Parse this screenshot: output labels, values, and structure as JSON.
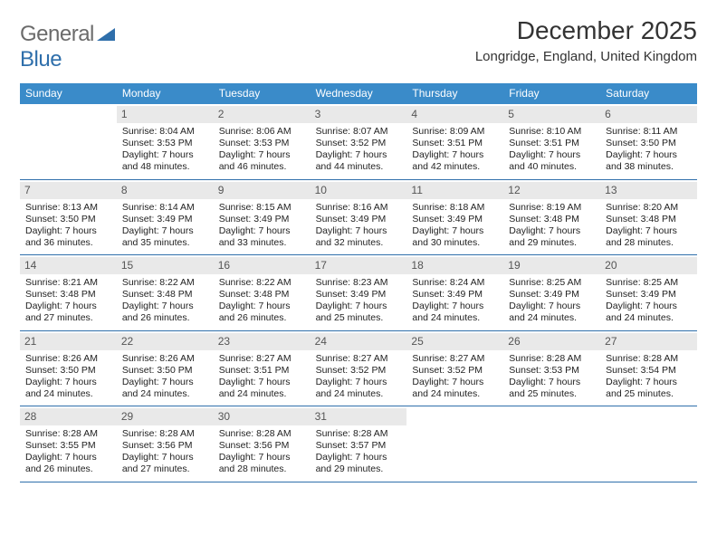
{
  "logo": {
    "grey": "General",
    "blue": "Blue"
  },
  "header": {
    "month_title": "December 2025",
    "location": "Longridge, England, United Kingdom"
  },
  "calendar": {
    "header_bg": "#3a8bc9",
    "header_fg": "#ffffff",
    "border_color": "#2f6fab",
    "daynum_bg": "#e9e9e9",
    "day_names": [
      "Sunday",
      "Monday",
      "Tuesday",
      "Wednesday",
      "Thursday",
      "Friday",
      "Saturday"
    ],
    "weeks": [
      [
        null,
        {
          "n": "1",
          "sr": "Sunrise: 8:04 AM",
          "ss": "Sunset: 3:53 PM",
          "d1": "Daylight: 7 hours",
          "d2": "and 48 minutes."
        },
        {
          "n": "2",
          "sr": "Sunrise: 8:06 AM",
          "ss": "Sunset: 3:53 PM",
          "d1": "Daylight: 7 hours",
          "d2": "and 46 minutes."
        },
        {
          "n": "3",
          "sr": "Sunrise: 8:07 AM",
          "ss": "Sunset: 3:52 PM",
          "d1": "Daylight: 7 hours",
          "d2": "and 44 minutes."
        },
        {
          "n": "4",
          "sr": "Sunrise: 8:09 AM",
          "ss": "Sunset: 3:51 PM",
          "d1": "Daylight: 7 hours",
          "d2": "and 42 minutes."
        },
        {
          "n": "5",
          "sr": "Sunrise: 8:10 AM",
          "ss": "Sunset: 3:51 PM",
          "d1": "Daylight: 7 hours",
          "d2": "and 40 minutes."
        },
        {
          "n": "6",
          "sr": "Sunrise: 8:11 AM",
          "ss": "Sunset: 3:50 PM",
          "d1": "Daylight: 7 hours",
          "d2": "and 38 minutes."
        }
      ],
      [
        {
          "n": "7",
          "sr": "Sunrise: 8:13 AM",
          "ss": "Sunset: 3:50 PM",
          "d1": "Daylight: 7 hours",
          "d2": "and 36 minutes."
        },
        {
          "n": "8",
          "sr": "Sunrise: 8:14 AM",
          "ss": "Sunset: 3:49 PM",
          "d1": "Daylight: 7 hours",
          "d2": "and 35 minutes."
        },
        {
          "n": "9",
          "sr": "Sunrise: 8:15 AM",
          "ss": "Sunset: 3:49 PM",
          "d1": "Daylight: 7 hours",
          "d2": "and 33 minutes."
        },
        {
          "n": "10",
          "sr": "Sunrise: 8:16 AM",
          "ss": "Sunset: 3:49 PM",
          "d1": "Daylight: 7 hours",
          "d2": "and 32 minutes."
        },
        {
          "n": "11",
          "sr": "Sunrise: 8:18 AM",
          "ss": "Sunset: 3:49 PM",
          "d1": "Daylight: 7 hours",
          "d2": "and 30 minutes."
        },
        {
          "n": "12",
          "sr": "Sunrise: 8:19 AM",
          "ss": "Sunset: 3:48 PM",
          "d1": "Daylight: 7 hours",
          "d2": "and 29 minutes."
        },
        {
          "n": "13",
          "sr": "Sunrise: 8:20 AM",
          "ss": "Sunset: 3:48 PM",
          "d1": "Daylight: 7 hours",
          "d2": "and 28 minutes."
        }
      ],
      [
        {
          "n": "14",
          "sr": "Sunrise: 8:21 AM",
          "ss": "Sunset: 3:48 PM",
          "d1": "Daylight: 7 hours",
          "d2": "and 27 minutes."
        },
        {
          "n": "15",
          "sr": "Sunrise: 8:22 AM",
          "ss": "Sunset: 3:48 PM",
          "d1": "Daylight: 7 hours",
          "d2": "and 26 minutes."
        },
        {
          "n": "16",
          "sr": "Sunrise: 8:22 AM",
          "ss": "Sunset: 3:48 PM",
          "d1": "Daylight: 7 hours",
          "d2": "and 26 minutes."
        },
        {
          "n": "17",
          "sr": "Sunrise: 8:23 AM",
          "ss": "Sunset: 3:49 PM",
          "d1": "Daylight: 7 hours",
          "d2": "and 25 minutes."
        },
        {
          "n": "18",
          "sr": "Sunrise: 8:24 AM",
          "ss": "Sunset: 3:49 PM",
          "d1": "Daylight: 7 hours",
          "d2": "and 24 minutes."
        },
        {
          "n": "19",
          "sr": "Sunrise: 8:25 AM",
          "ss": "Sunset: 3:49 PM",
          "d1": "Daylight: 7 hours",
          "d2": "and 24 minutes."
        },
        {
          "n": "20",
          "sr": "Sunrise: 8:25 AM",
          "ss": "Sunset: 3:49 PM",
          "d1": "Daylight: 7 hours",
          "d2": "and 24 minutes."
        }
      ],
      [
        {
          "n": "21",
          "sr": "Sunrise: 8:26 AM",
          "ss": "Sunset: 3:50 PM",
          "d1": "Daylight: 7 hours",
          "d2": "and 24 minutes."
        },
        {
          "n": "22",
          "sr": "Sunrise: 8:26 AM",
          "ss": "Sunset: 3:50 PM",
          "d1": "Daylight: 7 hours",
          "d2": "and 24 minutes."
        },
        {
          "n": "23",
          "sr": "Sunrise: 8:27 AM",
          "ss": "Sunset: 3:51 PM",
          "d1": "Daylight: 7 hours",
          "d2": "and 24 minutes."
        },
        {
          "n": "24",
          "sr": "Sunrise: 8:27 AM",
          "ss": "Sunset: 3:52 PM",
          "d1": "Daylight: 7 hours",
          "d2": "and 24 minutes."
        },
        {
          "n": "25",
          "sr": "Sunrise: 8:27 AM",
          "ss": "Sunset: 3:52 PM",
          "d1": "Daylight: 7 hours",
          "d2": "and 24 minutes."
        },
        {
          "n": "26",
          "sr": "Sunrise: 8:28 AM",
          "ss": "Sunset: 3:53 PM",
          "d1": "Daylight: 7 hours",
          "d2": "and 25 minutes."
        },
        {
          "n": "27",
          "sr": "Sunrise: 8:28 AM",
          "ss": "Sunset: 3:54 PM",
          "d1": "Daylight: 7 hours",
          "d2": "and 25 minutes."
        }
      ],
      [
        {
          "n": "28",
          "sr": "Sunrise: 8:28 AM",
          "ss": "Sunset: 3:55 PM",
          "d1": "Daylight: 7 hours",
          "d2": "and 26 minutes."
        },
        {
          "n": "29",
          "sr": "Sunrise: 8:28 AM",
          "ss": "Sunset: 3:56 PM",
          "d1": "Daylight: 7 hours",
          "d2": "and 27 minutes."
        },
        {
          "n": "30",
          "sr": "Sunrise: 8:28 AM",
          "ss": "Sunset: 3:56 PM",
          "d1": "Daylight: 7 hours",
          "d2": "and 28 minutes."
        },
        {
          "n": "31",
          "sr": "Sunrise: 8:28 AM",
          "ss": "Sunset: 3:57 PM",
          "d1": "Daylight: 7 hours",
          "d2": "and 29 minutes."
        },
        null,
        null,
        null
      ]
    ]
  }
}
